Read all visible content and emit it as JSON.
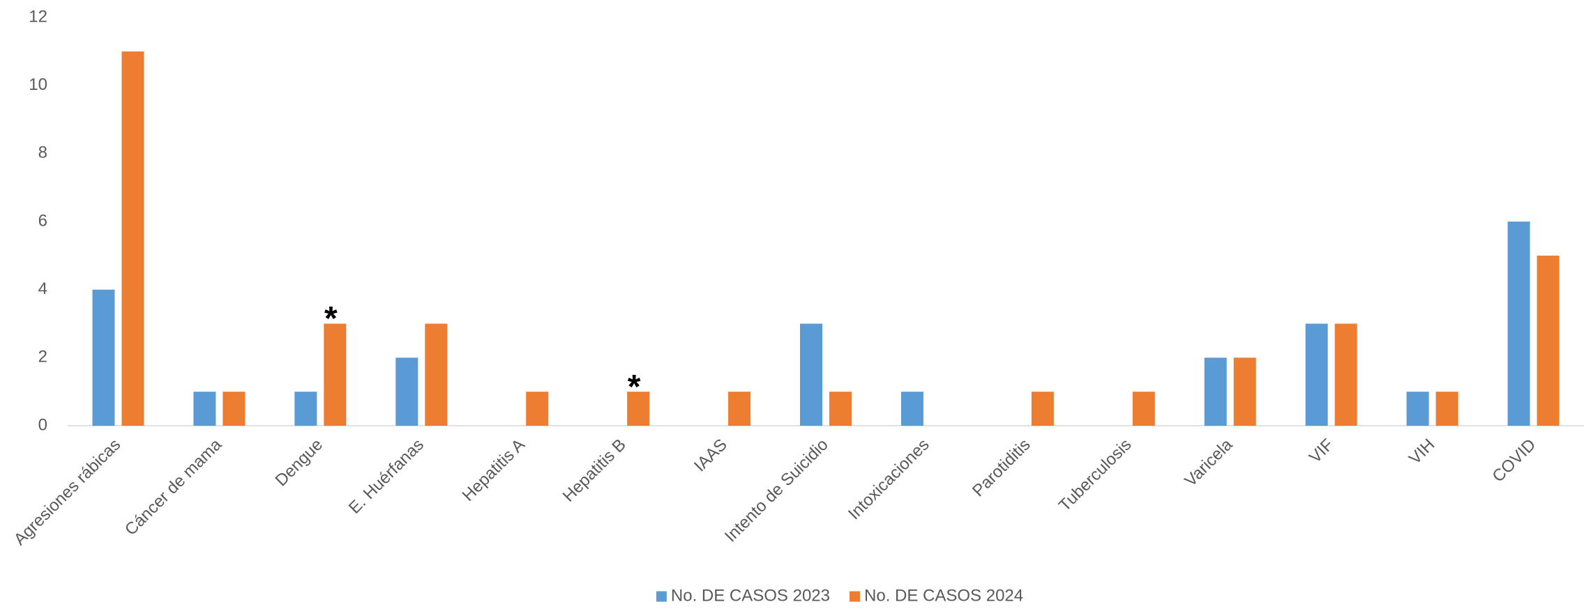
{
  "chart_data": {
    "type": "bar",
    "categories": [
      "Agresiones rábicas",
      "Cáncer de mama",
      "Dengue",
      "E. Huérfanas",
      "Hepatitis A",
      "Hepatitis B",
      "IAAS",
      "Intento de Suicidio",
      "Intoxicaciones",
      "Parotiditis",
      "Tuberculosis",
      "Varicela",
      "VIF",
      "VIH",
      "COVID"
    ],
    "series": [
      {
        "name": "No. DE CASOS 2023",
        "color": "#5b9bd5",
        "values": [
          4,
          1,
          1,
          2,
          0,
          0,
          0,
          3,
          1,
          0,
          0,
          2,
          3,
          1,
          6
        ]
      },
      {
        "name": "No. DE CASOS 2024",
        "color": "#ed7d31",
        "values": [
          11,
          1,
          3,
          3,
          1,
          1,
          1,
          1,
          0,
          1,
          1,
          2,
          3,
          1,
          5
        ]
      }
    ],
    "annotations": [
      {
        "text": "*",
        "category": "Dengue",
        "series": "No. DE CASOS 2024"
      },
      {
        "text": "*",
        "category": "Hepatitis B",
        "series": "No. DE CASOS 2024"
      }
    ],
    "ylim": [
      0,
      12
    ],
    "yticks": [
      0,
      2,
      4,
      6,
      8,
      10,
      12
    ],
    "grid": false,
    "legend": "bottom"
  }
}
